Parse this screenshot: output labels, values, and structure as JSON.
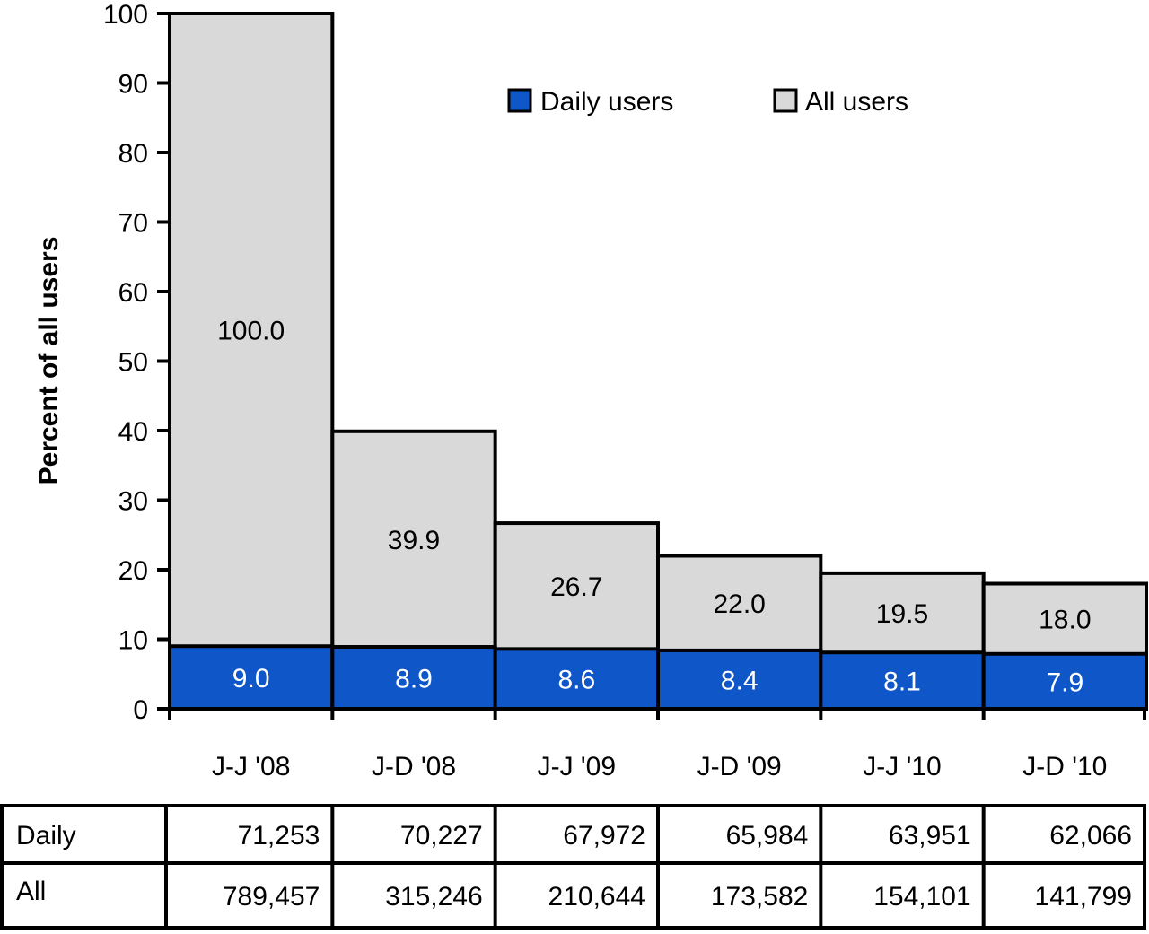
{
  "chart_data": {
    "type": "bar",
    "title": "",
    "xlabel": "",
    "ylabel": "Percent of all users",
    "ylim": [
      0,
      100
    ],
    "yticks": [
      0,
      10,
      20,
      30,
      40,
      50,
      60,
      70,
      80,
      90,
      100
    ],
    "categories": [
      "J-J '08",
      "J-D '08",
      "J-J '09",
      "J-D '09",
      "J-J '10",
      "J-D '10"
    ],
    "series": [
      {
        "name": "Daily users",
        "values": [
          9.0,
          8.9,
          8.6,
          8.4,
          8.1,
          7.9
        ],
        "labels": [
          "9.0",
          "8.9",
          "8.6",
          "8.4",
          "8.1",
          "7.9"
        ],
        "color": "#0f57c9"
      },
      {
        "name": "All users",
        "values": [
          100.0,
          39.9,
          26.7,
          22.0,
          19.5,
          18.0
        ],
        "labels": [
          "100.0",
          "39.9",
          "26.7",
          "22.0",
          "19.5",
          "18.0"
        ],
        "color": "#d9d9d9"
      }
    ],
    "legend_position": "top-right",
    "grid": false,
    "table": {
      "rows": [
        {
          "label": "Daily",
          "values": [
            "71,253",
            "70,227",
            "67,972",
            "65,984",
            "63,951",
            "62,066"
          ]
        },
        {
          "label": "All",
          "values": [
            "789,457",
            "315,246",
            "210,644",
            "173,582",
            "154,101",
            "141,799"
          ]
        }
      ]
    }
  }
}
